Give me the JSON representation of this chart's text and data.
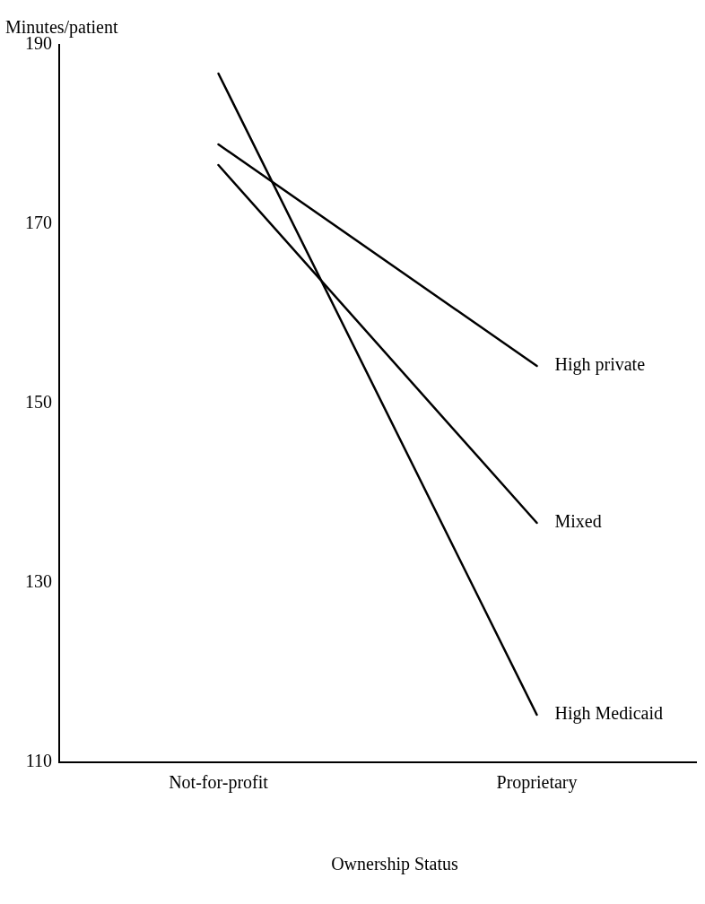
{
  "chart_data": {
    "type": "line",
    "xlabel": "Ownership Status",
    "ylabel": "Minutes/patient",
    "categories": [
      "Not-for-profit",
      "Proprietary"
    ],
    "series": [
      {
        "name": "High private",
        "color": "#000000",
        "values": [
          178.9,
          154.2
        ]
      },
      {
        "name": "Mixed",
        "color": "#000000",
        "values": [
          176.6,
          136.7
        ]
      },
      {
        "name": "High Medicaid",
        "color": "#000000",
        "values": [
          186.8,
          115.3
        ]
      }
    ],
    "ylim": [
      110,
      190
    ],
    "yticks": [
      110,
      130,
      150,
      170,
      190
    ],
    "grid": false,
    "marker": "none",
    "line_style": "solid"
  }
}
